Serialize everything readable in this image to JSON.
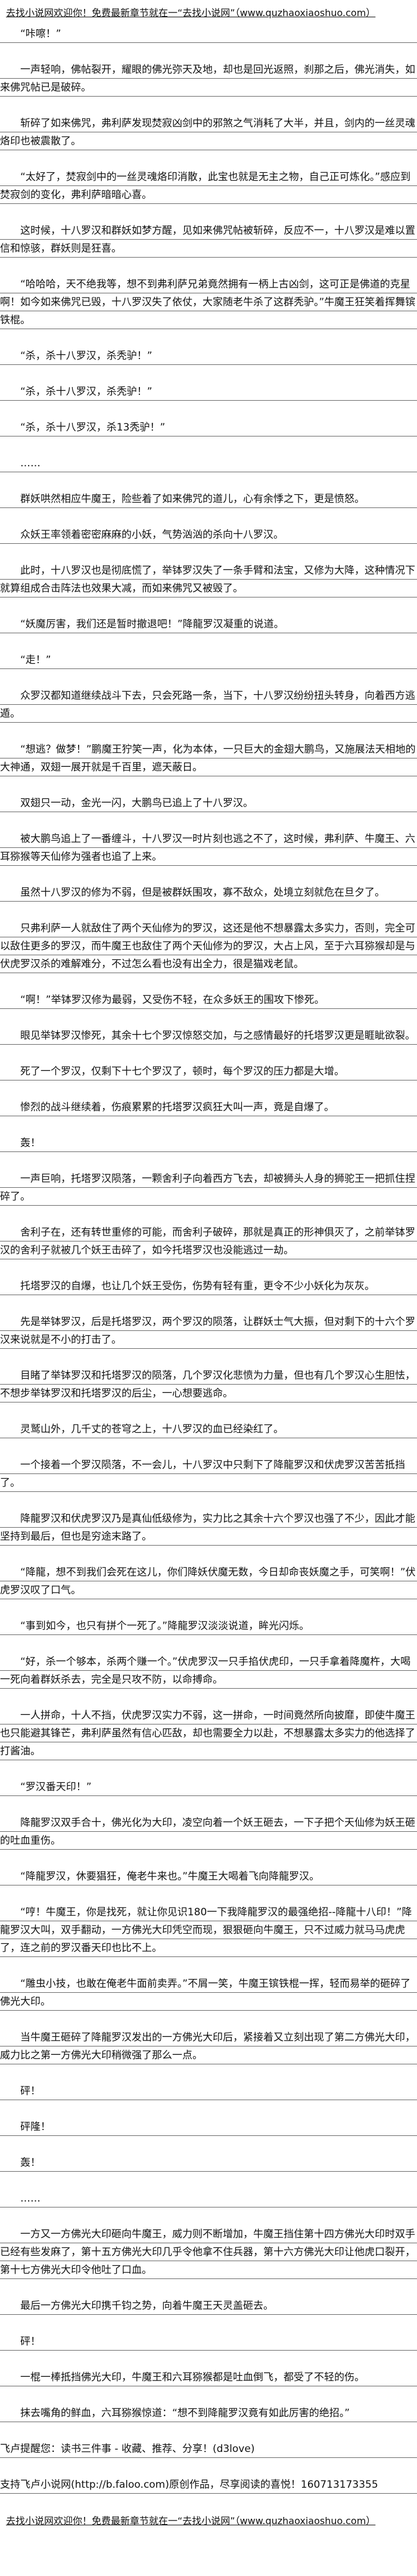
{
  "banner": "去找小说网欢迎你！免费最新章节就在一“去找小说网”（www.quzhaoxiaoshuo.com）",
  "paragraphs": [
    "“咔嚓！”",
    "一声轻响，佛帖裂开，耀眼的佛光弥天及地，却也是回光返照，刹那之后，佛光消失，如来佛咒帖已是破碎。",
    "斩碎了如来佛咒，弗利萨发现焚寂凶剑中的邪煞之气消耗了大半，并且，剑内的一丝灵魂烙印也被震散了。",
    "“太好了，焚寂剑中的一丝灵魂烙印消散，此宝也就是无主之物，自己正可炼化。”感应到焚寂剑的变化，弗利萨暗暗心喜。",
    "这时候，十八罗汉和群妖如梦方醒，见如来佛咒帖被斩碎，反应不一，十八罗汉是难以置信和惊骇，群妖则是狂喜。",
    "“哈哈哈，天不绝我等，想不到弗利萨兄弟竟然拥有一柄上古凶剑，这可正是佛道的克星啊！如今如来佛咒已毁，十八罗汉失了依仗，大家随老牛杀了这群秃驴。”牛魔王狂笑着挥舞镔铁棍。",
    "“杀，杀十八罗汉，杀秃驴！”",
    "“杀，杀十八罗汉，杀秃驴！”",
    "“杀，杀十八罗汉，杀13秃驴！”",
    "……",
    "群妖哄然相应牛魔王，险些着了如来佛咒的道儿，心有余悸之下，更是愤怒。",
    "众妖王率领着密密麻麻的小妖，气势汹汹的杀向十八罗汉。",
    "此时，十八罗汉也是彻底慌了，举钵罗汉失了一条手臂和法宝，又修为大降，这种情况下就算组成合击阵法也效果大减，而如来佛咒又被毁了。",
    "“妖魔厉害，我们还是暂时撤退吧！”降龍罗汉凝重的说道。",
    "“走！”",
    "众罗汉都知道继续战斗下去，只会死路一条，当下，十八罗汉纷纷扭头转身，向着西方逃遁。",
    "“想逃？做梦！”鹏魔王狞笑一声，化为本体，一只巨大的金翅大鹏鸟，又施展法天相地的大神通，双翅一展开就是千百里，遮天蔽日。",
    "双翅只一动，金光一闪，大鹏鸟已追上了十八罗汉。",
    "被大鹏鸟追上了一番缠斗，十八罗汉一时片刻也逃之不了，这时候，弗利萨、牛魔王、六耳猕猴等天仙修为强者也追了上来。",
    "虽然十八罗汉的修为不弱，但是被群妖围攻，寡不敌众，处境立刻就危在旦夕了。",
    "只弗利萨一人就敌住了两个天仙修为的罗汉，这还是他不想暴露太多实力，否则，完全可以敌住更多的罗汉，而牛魔王也敌住了两个天仙修为的罗汉，大占上风，至于六耳猕猴却是与伏虎罗汉杀的难解难分，不过怎么看也没有出全力，很是猫戏老鼠。",
    "“啊！”举钵罗汉修为最弱，又受伤不轻，在众多妖王的围攻下惨死。",
    "眼见举钵罗汉惨死，其余十七个罗汉惊怒交加，与之感情最好的托塔罗汉更是睚眦欲裂。",
    "死了一个罗汉，仅剩下十七个罗汉了，顿时，每个罗汉的压力都是大增。",
    "惨烈的战斗继续着，伤痕累累的托塔罗汉疯狂大叫一声，竟是自爆了。",
    "轰！",
    "一声巨响，托塔罗汉陨落，一颗舍利子向着西方飞去，却被狮头人身的狮驼王一把抓住捏碎了。",
    "舍利子在，还有转世重修的可能，而舍利子破碎，那就是真正的形神俱灭了，之前举钵罗汉的舍利子就被几个妖王击碎了，如今托塔罗汉也没能逃过一劫。",
    "托塔罗汉的自爆，也让几个妖王受伤，伤势有轻有重，更令不少小妖化为灰灰。",
    "先是举钵罗汉，后是托塔罗汉，两个罗汉的陨落，让群妖士气大振，但对剩下的十六个罗汉来说就是不小的打击了。",
    "目睹了举钵罗汉和托塔罗汉的陨落，几个罗汉化悲愤为力量，但也有几个罗汉心生胆怯，不想步举钵罗汉和托塔罗汉的后尘，一心想要逃命。",
    "灵鹫山外，几千丈的苍穹之上，十八罗汉的血已经染红了。",
    "一个接着一个罗汉陨落，不一会儿，十八罗汉中只剩下了降龍罗汉和伏虎罗汉苦苦抵挡了。",
    "降龍罗汉和伏虎罗汉乃是真仙低级修为，实力比之其余十六个罗汉也强了不少，因此才能坚持到最后，但也是穷途末路了。",
    "“降龍，想不到我们会死在这儿，你们降妖伏魔无数，今日却命丧妖魔之手，可笑啊！”伏虎罗汉叹了口气。",
    "“事到如今，也只有拼个一死了。”降龍罗汉淡淡说道，眸光闪烁。",
    "“好，杀一个够本，杀两个赚一个。”伏虎罗汉一只手掐伏虎印，一只手拿着降魔杵，大喝一死向着群妖杀去，完全是只攻不防，以命搏命。",
    "一人拼命，十人不挡，伏虎罗汉实力不弱，这一拼命，一时间竟然所向披靡，即使牛魔王也只能避其锋芒，弗利萨虽然有信心匹敌，却也需要全力以赴，不想暴露太多实力的他选择了打酱油。",
    "“罗汉番天印！”",
    "降龍罗汉双手合十，佛光化为大印，凌空向着一个妖王砸去，一下子把个天仙修为妖王砸的吐血重伤。",
    "“降龍罗汉，休要猖狂，俺老牛来也。”牛魔王大喝着飞向降龍罗汉。",
    "“哼！牛魔王，你是找死，就让你见识180一下我降龍罗汉的最强绝招--降龍十八印！”降龍罗汉大叫，双手翻动，一方佛光大印凭空而现，狠狠砸向牛魔王，只不过威力就马马虎虎了，连之前的罗汉番天印也比不上。",
    "“雕虫小技，也敢在俺老牛面前卖弄。”不屑一笑，牛魔王镔铁棍一挥，轻而易举的砸碎了佛光大印。",
    "当牛魔王砸碎了降龍罗汉发出的一方佛光大印后，紧接着又立刻出现了第二方佛光大印，威力比之第一方佛光大印稍微强了那么一点。",
    "砰！",
    "砰隆！",
    "轰！",
    "……",
    "一方又一方佛光大印砸向牛魔王，威力则不断增加，牛魔王挡住第十四方佛光大印时双手已经有些发麻了，第十五方佛光大印几乎令他拿不住兵器，第十六方佛光大印让他虎口裂开，第十七方佛光大印令他吐了口血。",
    "最后一方佛光大印携千钧之势，向着牛魔王天灵盖砸去。",
    "砰！",
    "一棍一棒抵挡佛光大印，牛魔王和六耳猕猴都是吐血倒飞，都受了不轻的伤。",
    "抹去嘴角的鲜血，六耳猕猴惊道：“想不到降龍罗汉竟有如此厉害的绝招。”"
  ],
  "footer": {
    "reminder": "飞卢提醒您：读书三件事 - 收藏、推荐、分享！(d3love)",
    "support": "支持飞卢小说网(http://b.faloo.com)原创作品，尽享阅读的喜悦！160713173355"
  }
}
